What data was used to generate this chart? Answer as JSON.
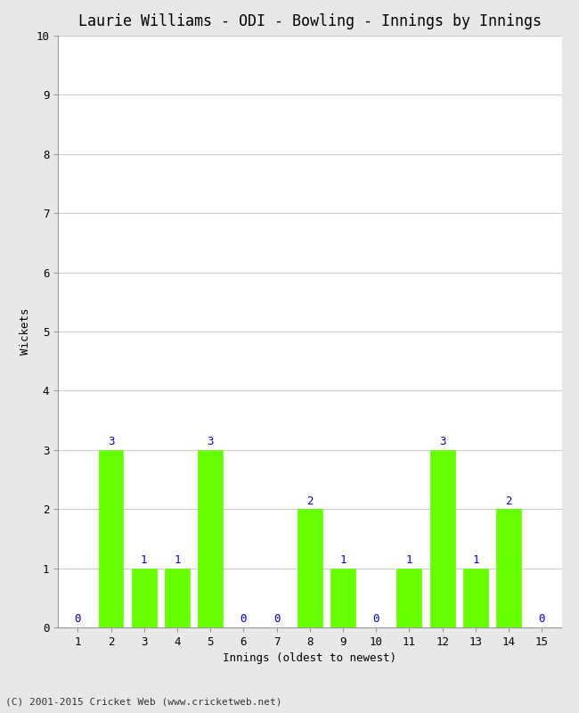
{
  "title": "Laurie Williams - ODI - Bowling - Innings by Innings",
  "xlabel": "Innings (oldest to newest)",
  "ylabel": "Wickets",
  "innings": [
    1,
    2,
    3,
    4,
    5,
    6,
    7,
    8,
    9,
    10,
    11,
    12,
    13,
    14,
    15
  ],
  "wickets": [
    0,
    3,
    1,
    1,
    3,
    0,
    0,
    2,
    1,
    0,
    1,
    3,
    1,
    2,
    0
  ],
  "bar_color": "#66ff00",
  "bar_edge_color": "#66ff00",
  "label_color": "#0000cc",
  "background_color": "#e8e8e8",
  "plot_background_color": "#ffffff",
  "ylim": [
    0,
    10
  ],
  "yticks": [
    0,
    1,
    2,
    3,
    4,
    5,
    6,
    7,
    8,
    9,
    10
  ],
  "grid_color": "#cccccc",
  "title_fontsize": 12,
  "axis_label_fontsize": 9,
  "tick_fontsize": 9,
  "annotation_fontsize": 9,
  "copyright": "(C) 2001-2015 Cricket Web (www.cricketweb.net)",
  "copyright_fontsize": 8
}
